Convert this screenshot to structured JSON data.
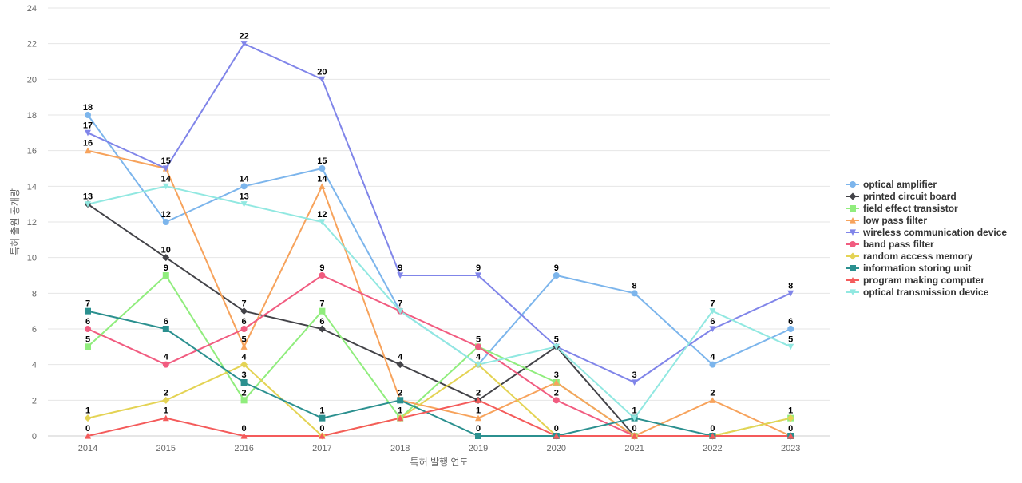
{
  "chart_data": {
    "type": "line",
    "title": "",
    "xlabel": "특허 발행 연도",
    "ylabel": "특허 출원 공개량",
    "categories": [
      "2014",
      "2015",
      "2016",
      "2017",
      "2018",
      "2019",
      "2020",
      "2021",
      "2022",
      "2023"
    ],
    "ylim": [
      0,
      24
    ],
    "yticks": [
      0,
      2,
      4,
      6,
      8,
      10,
      12,
      14,
      16,
      18,
      20,
      22,
      24
    ],
    "grid": "horizontal",
    "legend_position": "right",
    "series": [
      {
        "name": "optical amplifier",
        "color": "#7cb5ec",
        "marker": "circle",
        "values": [
          18,
          12,
          14,
          15,
          7,
          4,
          9,
          8,
          4,
          6
        ]
      },
      {
        "name": "printed circuit board",
        "color": "#434348",
        "marker": "diamond",
        "values": [
          13,
          10,
          7,
          6,
          4,
          2,
          5,
          0,
          0,
          0
        ]
      },
      {
        "name": "field effect transistor",
        "color": "#90ed7d",
        "marker": "square",
        "values": [
          5,
          9,
          2,
          7,
          1,
          5,
          3,
          0,
          0,
          1
        ]
      },
      {
        "name": "low pass filter",
        "color": "#f7a35c",
        "marker": "triangle",
        "values": [
          16,
          15,
          5,
          14,
          2,
          1,
          3,
          0,
          2,
          0
        ]
      },
      {
        "name": "wireless communication device",
        "color": "#8085e9",
        "marker": "triangle-down",
        "values": [
          17,
          15,
          22,
          20,
          9,
          9,
          5,
          3,
          6,
          8
        ]
      },
      {
        "name": "band pass filter",
        "color": "#f15c80",
        "marker": "circle",
        "values": [
          6,
          4,
          6,
          9,
          7,
          5,
          2,
          0,
          0,
          0
        ]
      },
      {
        "name": "random access memory",
        "color": "#e4d354",
        "marker": "diamond",
        "values": [
          1,
          2,
          4,
          0,
          1,
          4,
          0,
          0,
          0,
          1
        ]
      },
      {
        "name": "information storing unit",
        "color": "#2b908f",
        "marker": "square",
        "values": [
          7,
          6,
          3,
          1,
          2,
          0,
          0,
          1,
          0,
          0
        ]
      },
      {
        "name": "program making computer",
        "color": "#f45b5b",
        "marker": "triangle",
        "values": [
          0,
          1,
          0,
          0,
          1,
          2,
          0,
          0,
          0,
          0
        ]
      },
      {
        "name": "optical transmission device",
        "color": "#91e8e1",
        "marker": "triangle-down",
        "values": [
          13,
          14,
          13,
          12,
          7,
          4,
          5,
          1,
          7,
          5
        ]
      }
    ],
    "data_labels": [
      {
        "x": "2014",
        "labels": [
          18,
          17,
          16,
          13,
          7,
          6,
          5,
          1,
          0
        ]
      },
      {
        "x": "2015",
        "labels": [
          15,
          14,
          12,
          10,
          9,
          6,
          4,
          2,
          1
        ]
      },
      {
        "x": "2016",
        "labels": [
          22,
          14,
          13,
          7,
          6,
          5,
          4,
          3,
          2,
          0
        ]
      },
      {
        "x": "2017",
        "labels": [
          20,
          15,
          14,
          12,
          9,
          7,
          6,
          1,
          0
        ]
      },
      {
        "x": "2018",
        "labels": [
          9,
          7,
          4,
          2,
          1
        ]
      },
      {
        "x": "2019",
        "labels": [
          9,
          5,
          4,
          2,
          1,
          0
        ]
      },
      {
        "x": "2020",
        "labels": [
          9,
          5,
          3,
          2,
          0
        ]
      },
      {
        "x": "2021",
        "labels": [
          8,
          3,
          1,
          0
        ]
      },
      {
        "x": "2022",
        "labels": [
          7,
          6,
          4,
          2,
          0
        ]
      },
      {
        "x": "2023",
        "labels": [
          8,
          6,
          5,
          1,
          0
        ]
      }
    ]
  }
}
